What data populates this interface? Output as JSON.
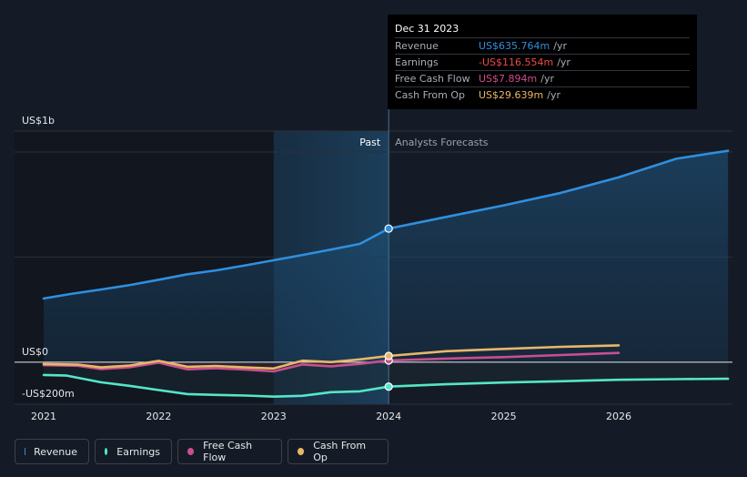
{
  "chart_data": {
    "type": "area",
    "title": "",
    "y_axis": {
      "ylim": [
        -200,
        1000
      ],
      "unit": "US$m",
      "labels": [
        {
          "value": 1000,
          "text": "US$1b"
        },
        {
          "value": 0,
          "text": "US$0"
        },
        {
          "value": -200,
          "text": "-US$200m"
        }
      ]
    },
    "x_axis": {
      "xlim": [
        2020.75,
        2026.95
      ],
      "ticks": [
        2021,
        2022,
        2023,
        2024,
        2025,
        2026
      ],
      "tick_labels": [
        "2021",
        "2022",
        "2023",
        "2024",
        "2025",
        "2026"
      ]
    },
    "divider_x": 2024.0,
    "shaded_past_start": 2023.0,
    "region_labels": {
      "past": "Past",
      "forecast": "Analysts Forecasts"
    },
    "series": [
      {
        "name": "Revenue",
        "key": "revenue",
        "color": "#2f8fde",
        "points": [
          [
            2021.0,
            303
          ],
          [
            2021.25,
            326
          ],
          [
            2021.5,
            346
          ],
          [
            2021.75,
            367
          ],
          [
            2022.0,
            392
          ],
          [
            2022.25,
            418
          ],
          [
            2022.5,
            437
          ],
          [
            2022.75,
            460
          ],
          [
            2023.0,
            485
          ],
          [
            2023.25,
            510
          ],
          [
            2023.5,
            536
          ],
          [
            2023.75,
            563
          ],
          [
            2024.0,
            635.764
          ],
          [
            2024.5,
            691
          ],
          [
            2025.0,
            746
          ],
          [
            2025.5,
            806
          ],
          [
            2026.0,
            880
          ],
          [
            2026.5,
            968
          ],
          [
            2026.95,
            1006
          ]
        ]
      },
      {
        "name": "Earnings",
        "key": "earnings",
        "color": "#55e6c8",
        "points": [
          [
            2021.0,
            -61
          ],
          [
            2021.2,
            -64
          ],
          [
            2021.5,
            -96
          ],
          [
            2021.75,
            -113
          ],
          [
            2022.0,
            -133
          ],
          [
            2022.25,
            -152
          ],
          [
            2022.5,
            -156
          ],
          [
            2022.75,
            -159
          ],
          [
            2023.0,
            -164
          ],
          [
            2023.25,
            -160
          ],
          [
            2023.5,
            -143
          ],
          [
            2023.75,
            -139
          ],
          [
            2024.0,
            -116.554
          ],
          [
            2024.5,
            -105
          ],
          [
            2025.0,
            -97
          ],
          [
            2025.5,
            -91
          ],
          [
            2026.0,
            -84
          ],
          [
            2026.5,
            -81
          ],
          [
            2026.95,
            -79
          ]
        ]
      },
      {
        "name": "Free Cash Flow",
        "key": "fcf",
        "color": "#c94f8e",
        "points": [
          [
            2021.0,
            -14
          ],
          [
            2021.3,
            -17
          ],
          [
            2021.5,
            -33
          ],
          [
            2021.75,
            -24
          ],
          [
            2022.0,
            -2
          ],
          [
            2022.25,
            -34
          ],
          [
            2022.5,
            -29
          ],
          [
            2022.75,
            -35
          ],
          [
            2023.0,
            -44
          ],
          [
            2023.25,
            -11
          ],
          [
            2023.5,
            -20
          ],
          [
            2023.75,
            -8
          ],
          [
            2024.0,
            7.894
          ],
          [
            2024.5,
            17
          ],
          [
            2025.0,
            24
          ],
          [
            2025.5,
            34
          ],
          [
            2026.0,
            44
          ]
        ]
      },
      {
        "name": "Cash From Op",
        "key": "cfo",
        "color": "#e8b76a",
        "points": [
          [
            2021.0,
            -9
          ],
          [
            2021.3,
            -12
          ],
          [
            2021.5,
            -25
          ],
          [
            2021.75,
            -16
          ],
          [
            2022.0,
            6
          ],
          [
            2022.25,
            -22
          ],
          [
            2022.5,
            -18
          ],
          [
            2022.75,
            -25
          ],
          [
            2023.0,
            -30
          ],
          [
            2023.25,
            7
          ],
          [
            2023.5,
            0
          ],
          [
            2023.75,
            13
          ],
          [
            2024.0,
            29.639
          ],
          [
            2024.5,
            52
          ],
          [
            2025.0,
            63
          ],
          [
            2025.5,
            73
          ],
          [
            2026.0,
            80
          ]
        ]
      }
    ],
    "legend": [
      "Revenue",
      "Earnings",
      "Free Cash Flow",
      "Cash From Op"
    ],
    "tooltip": {
      "date": "Dec 31 2023",
      "rows": [
        {
          "label": "Revenue",
          "value": "US$635.764m",
          "unit": "/yr",
          "color": "#2f8fde"
        },
        {
          "label": "Earnings",
          "value": "-US$116.554m",
          "unit": "/yr",
          "color": "#ee4a4a"
        },
        {
          "label": "Free Cash Flow",
          "value": "US$7.894m",
          "unit": "/yr",
          "color": "#d04c8e"
        },
        {
          "label": "Cash From Op",
          "value": "US$29.639m",
          "unit": "/yr",
          "color": "#e8b76a"
        }
      ]
    }
  }
}
